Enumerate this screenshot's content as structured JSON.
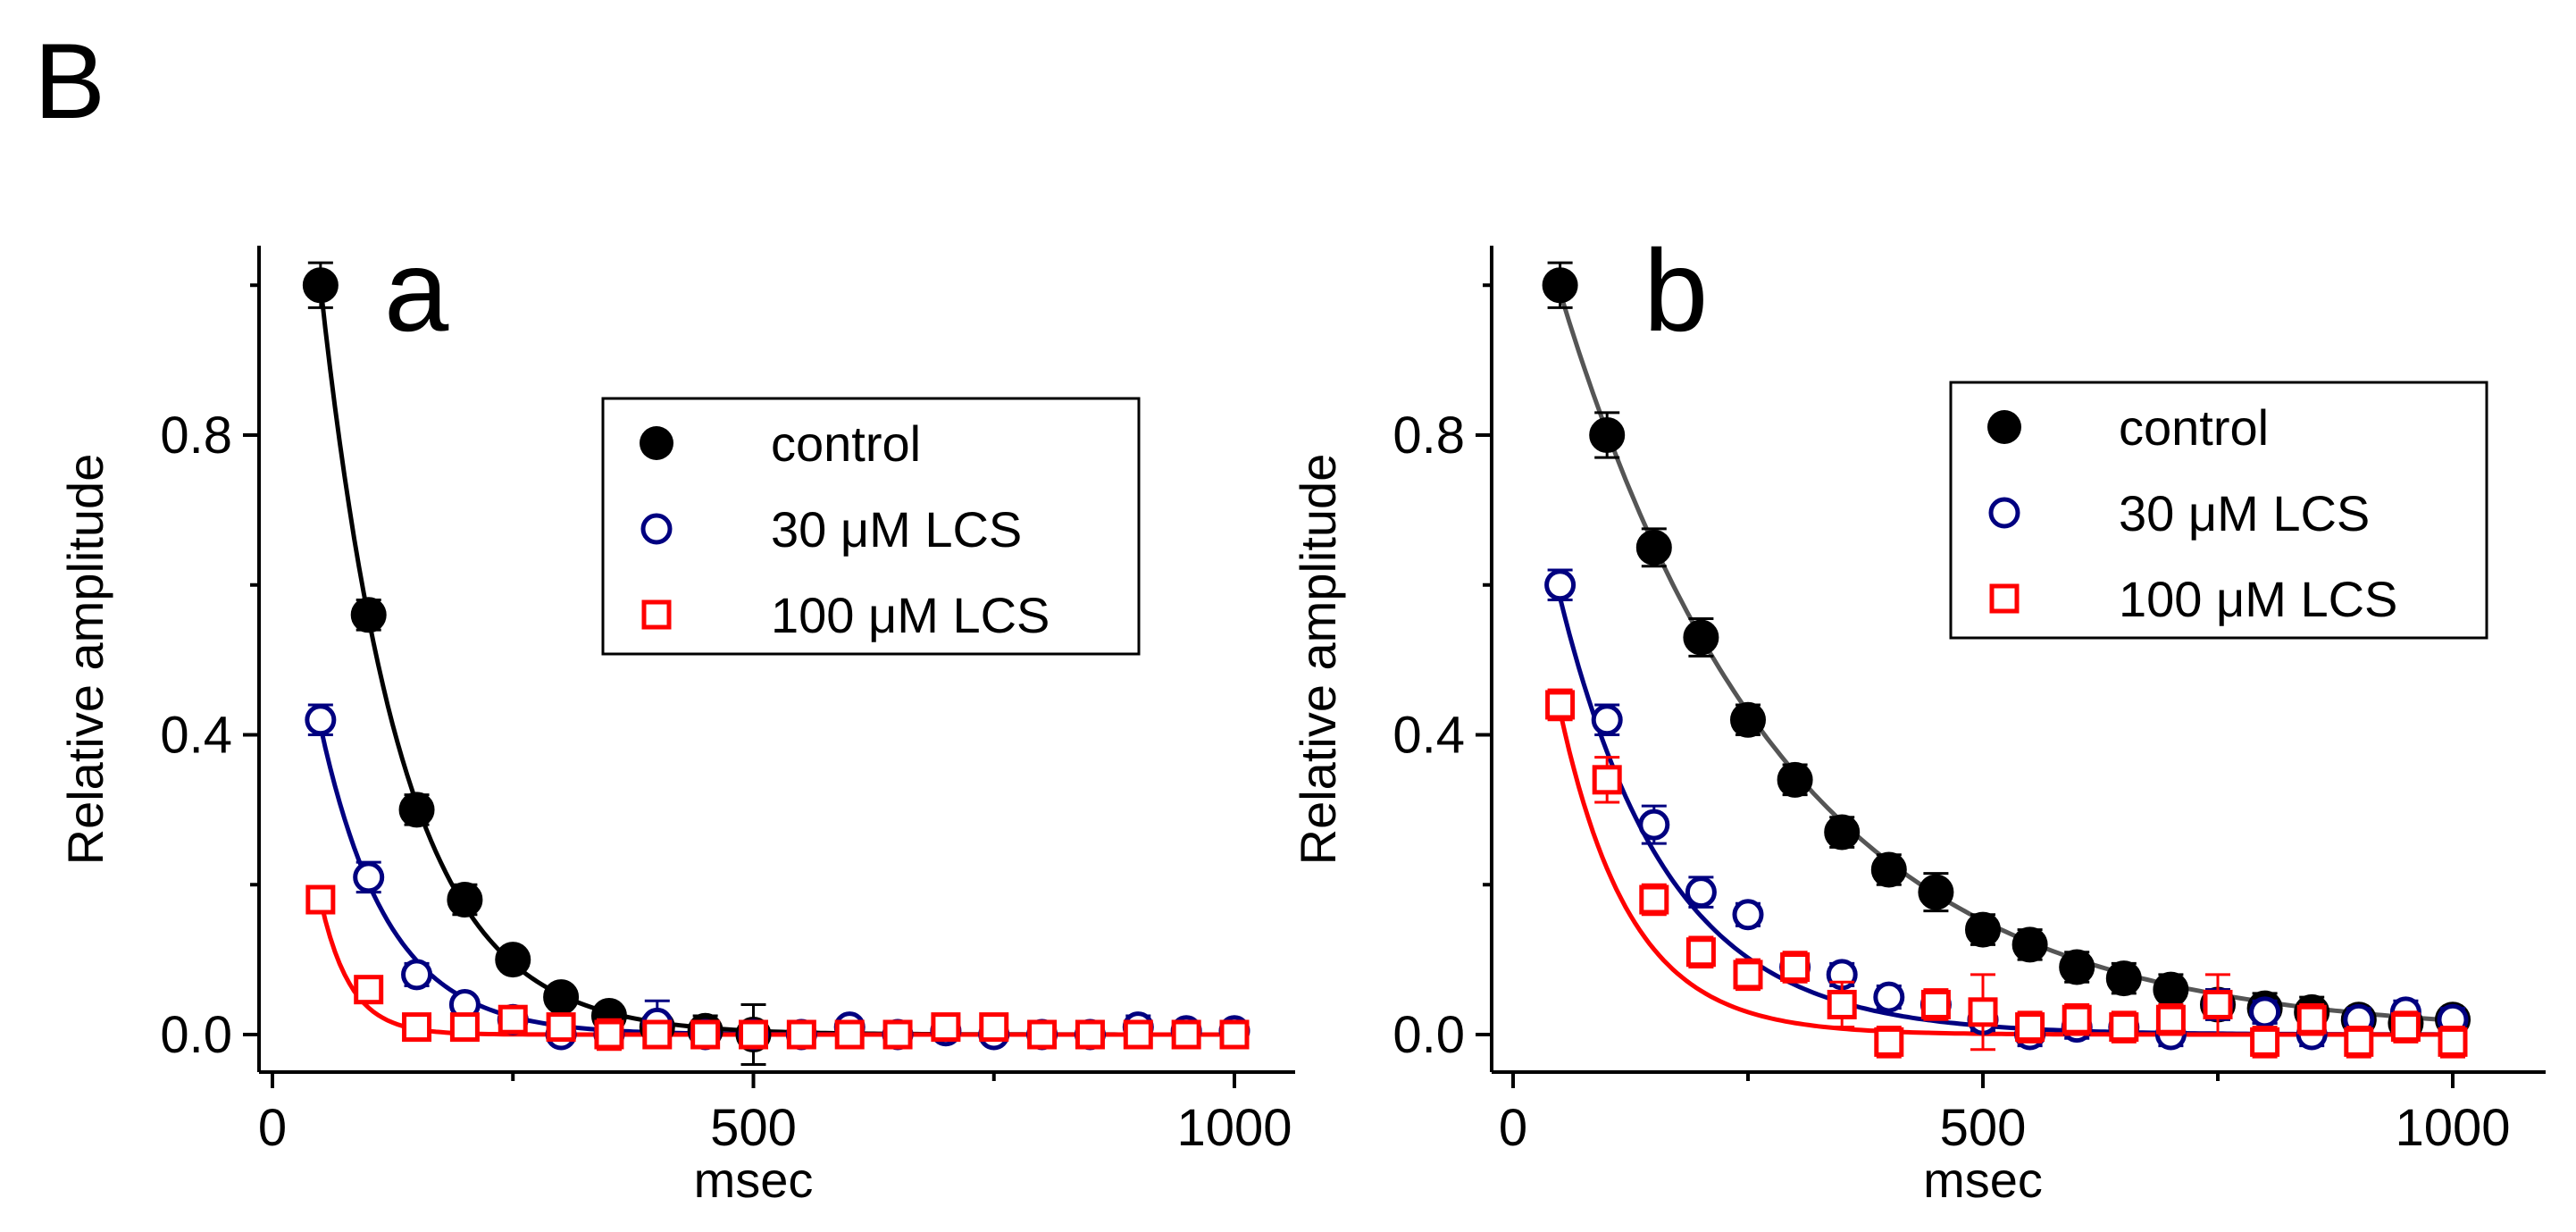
{
  "figure_label": "B",
  "chart_data": [
    {
      "type": "scatter",
      "panel_label": "a",
      "xlabel": "msec",
      "ylabel": "Relative amplitude",
      "xlim": [
        -30,
        1060
      ],
      "ylim": [
        -0.05,
        1.05
      ],
      "xticks": [
        0,
        500,
        1000
      ],
      "xtick_labels": [
        "0",
        "500",
        "1000"
      ],
      "yticks": [
        0.0,
        0.4,
        0.8
      ],
      "ytick_labels": [
        "0.0",
        "0.4",
        "0.8"
      ],
      "legend_position": "upper-right",
      "series": [
        {
          "name": "control",
          "color": "#000000",
          "marker": "filled-circle",
          "x": [
            50,
            100,
            150,
            200,
            250,
            300,
            350,
            400,
            450,
            500
          ],
          "y": [
            1.0,
            0.56,
            0.3,
            0.18,
            0.1,
            0.05,
            0.025,
            0.01,
            0.005,
            0.0
          ],
          "err": [
            0.03,
            0.02,
            0.02,
            0.02,
            0.015,
            0.015,
            0.015,
            0.01,
            0.02,
            0.04
          ],
          "fit": {
            "amp": 1.8,
            "tau": 85
          }
        },
        {
          "name": "30 μM LCS",
          "color": "#000080",
          "marker": "open-circle",
          "x": [
            50,
            100,
            150,
            200,
            250,
            300,
            350,
            400,
            450,
            500,
            550,
            600,
            650,
            700,
            750,
            800,
            850,
            900,
            950,
            1000
          ],
          "y": [
            0.42,
            0.21,
            0.08,
            0.04,
            0.02,
            0.0,
            0.0,
            0.015,
            0.0,
            0.0,
            0.0,
            0.01,
            0.0,
            0.005,
            0.0,
            0.0,
            0.0,
            0.01,
            0.005,
            0.005
          ],
          "err": [
            0.02,
            0.02,
            0.015,
            0.01,
            0.01,
            0.01,
            0.015,
            0.03,
            0.01,
            0.01,
            0.01,
            0.01,
            0.01,
            0.01,
            0.01,
            0.01,
            0.01,
            0.015,
            0.01,
            0.01
          ],
          "fit": {
            "amp": 0.84,
            "tau": 70
          }
        },
        {
          "name": "100 μM LCS",
          "color": "#ff0000",
          "marker": "open-square",
          "x": [
            50,
            100,
            150,
            200,
            250,
            300,
            350,
            400,
            450,
            500,
            550,
            600,
            650,
            700,
            750,
            800,
            850,
            900,
            950,
            1000
          ],
          "y": [
            0.18,
            0.06,
            0.01,
            0.01,
            0.02,
            0.01,
            0.0,
            0.0,
            0.0,
            0.0,
            0.0,
            0.0,
            0.0,
            0.01,
            0.01,
            0.0,
            0.0,
            0.0,
            0.0,
            0.0
          ],
          "err": [
            0.015,
            0.01,
            0.01,
            0.01,
            0.01,
            0.01,
            0.02,
            0.01,
            0.01,
            0.01,
            0.01,
            0.01,
            0.01,
            0.01,
            0.01,
            0.01,
            0.01,
            0.015,
            0.01,
            0.01
          ],
          "fit": {
            "amp": 0.9,
            "tau": 31
          }
        }
      ]
    },
    {
      "type": "scatter",
      "panel_label": "b",
      "xlabel": "msec",
      "ylabel": "Relative amplitude",
      "xlim": [
        -30,
        1060
      ],
      "ylim": [
        -0.05,
        1.05
      ],
      "xticks": [
        0,
        500,
        1000
      ],
      "xtick_labels": [
        "0",
        "500",
        "1000"
      ],
      "yticks": [
        0.0,
        0.4,
        0.8
      ],
      "ytick_labels": [
        "0.0",
        "0.4",
        "0.8"
      ],
      "legend_position": "upper-right",
      "series": [
        {
          "name": "control",
          "color": "#000000",
          "marker": "filled-circle",
          "x": [
            50,
            100,
            150,
            200,
            250,
            300,
            350,
            400,
            450,
            500,
            550,
            600,
            650,
            700,
            750,
            800,
            850,
            900,
            950,
            1000
          ],
          "y": [
            1.0,
            0.8,
            0.65,
            0.53,
            0.42,
            0.34,
            0.27,
            0.22,
            0.19,
            0.14,
            0.12,
            0.09,
            0.075,
            0.06,
            0.04,
            0.035,
            0.03,
            0.02,
            0.015,
            0.02
          ],
          "err": [
            0.03,
            0.03,
            0.025,
            0.025,
            0.02,
            0.02,
            0.02,
            0.02,
            0.025,
            0.02,
            0.02,
            0.02,
            0.02,
            0.02,
            0.02,
            0.02,
            0.02,
            0.015,
            0.015,
            0.015
          ],
          "fit": {
            "amp": 1.22,
            "tau": 240,
            "fit_color": "#555555"
          }
        },
        {
          "name": "30 μM LCS",
          "color": "#000080",
          "marker": "open-circle",
          "x": [
            50,
            100,
            150,
            200,
            250,
            300,
            350,
            400,
            450,
            500,
            550,
            600,
            650,
            700,
            750,
            800,
            850,
            900,
            950,
            1000
          ],
          "y": [
            0.6,
            0.42,
            0.28,
            0.19,
            0.16,
            0.09,
            0.08,
            0.05,
            0.04,
            0.02,
            0.0,
            0.01,
            0.01,
            0.0,
            0.04,
            0.03,
            0.0,
            0.02,
            0.03,
            0.02
          ],
          "err": [
            0.02,
            0.02,
            0.025,
            0.02,
            0.015,
            0.015,
            0.015,
            0.015,
            0.015,
            0.015,
            0.015,
            0.015,
            0.015,
            0.015,
            0.02,
            0.015,
            0.015,
            0.015,
            0.015,
            0.015
          ],
          "fit": {
            "amp": 0.9,
            "tau": 115
          }
        },
        {
          "name": "100 μM LCS",
          "color": "#ff0000",
          "marker": "open-square",
          "x": [
            50,
            100,
            150,
            200,
            250,
            300,
            350,
            400,
            450,
            500,
            550,
            600,
            650,
            700,
            750,
            800,
            850,
            900,
            950,
            1000
          ],
          "y": [
            0.44,
            0.34,
            0.18,
            0.11,
            0.08,
            0.09,
            0.04,
            -0.01,
            0.04,
            0.03,
            0.01,
            0.02,
            0.01,
            0.02,
            0.04,
            -0.01,
            0.02,
            -0.01,
            0.01,
            -0.01
          ],
          "err": [
            0.02,
            0.03,
            0.02,
            0.02,
            0.02,
            0.02,
            0.03,
            0.02,
            0.02,
            0.05,
            0.02,
            0.02,
            0.02,
            0.02,
            0.04,
            0.02,
            0.02,
            0.02,
            0.02,
            0.02
          ],
          "fit": {
            "amp": 0.84,
            "tau": 75
          }
        }
      ]
    }
  ]
}
